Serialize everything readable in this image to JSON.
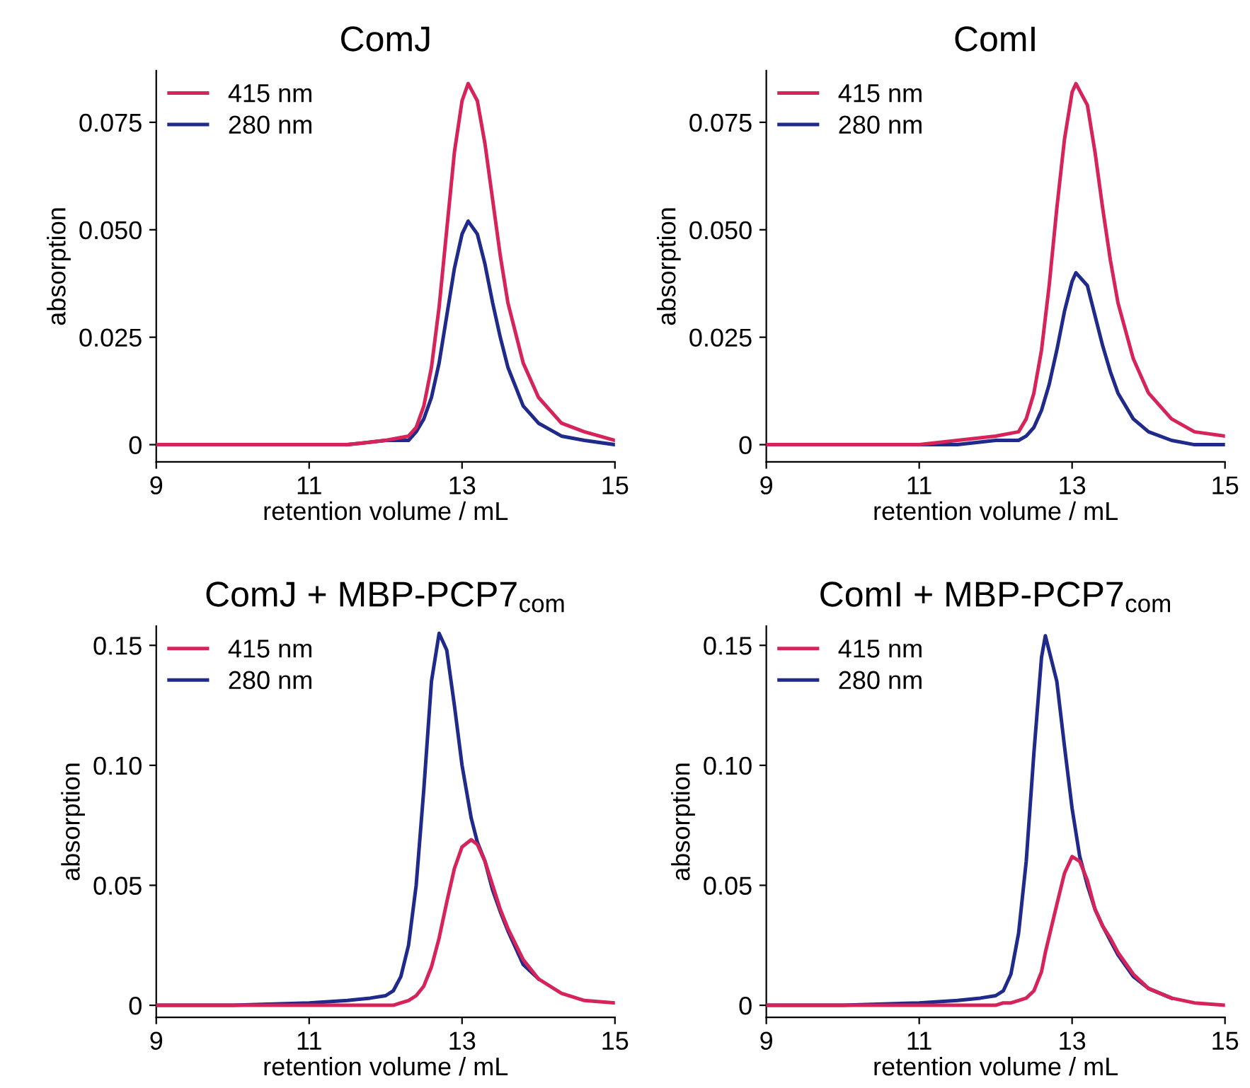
{
  "chart_data": [
    {
      "type": "line",
      "title": "ComJ",
      "xlabel": "retention volume / mL",
      "ylabel": "absorption",
      "legend": "top left",
      "grid": false,
      "x": [
        9,
        10,
        11,
        11.5,
        12,
        12.3,
        12.4,
        12.5,
        12.6,
        12.7,
        12.8,
        12.9,
        13.0,
        13.08,
        13.2,
        13.3,
        13.4,
        13.5,
        13.6,
        13.8,
        14.0,
        14.3,
        14.6,
        15
      ],
      "xlim": [
        9,
        15
      ],
      "xticks": [
        9,
        11,
        13,
        15
      ],
      "ylim": [
        -0.004,
        0.087
      ],
      "yticks": [
        0,
        {
          "value": 0.025,
          "label": "0.025"
        },
        {
          "value": 0.05,
          "label": "0.050"
        },
        {
          "value": 0.075,
          "label": "0.075"
        }
      ],
      "series": [
        {
          "name": "415 nm",
          "color": "#d6245a",
          "values": [
            0,
            0,
            0,
            0,
            0.001,
            0.002,
            0.004,
            0.009,
            0.018,
            0.032,
            0.05,
            0.068,
            0.08,
            0.084,
            0.08,
            0.07,
            0.057,
            0.044,
            0.033,
            0.019,
            0.011,
            0.005,
            0.003,
            0.001
          ]
        },
        {
          "name": "280 nm",
          "color": "#1f2a8a",
          "values": [
            null,
            null,
            null,
            0,
            0.001,
            0.001,
            0.003,
            0.006,
            0.011,
            0.019,
            0.03,
            0.041,
            0.049,
            0.052,
            0.049,
            0.042,
            0.033,
            0.025,
            0.018,
            0.009,
            0.005,
            0.002,
            0.001,
            0
          ]
        }
      ]
    },
    {
      "type": "line",
      "title": "ComI",
      "xlabel": "retention volume / mL",
      "ylabel": "absorption",
      "legend": "top left",
      "grid": false,
      "x": [
        9,
        10,
        11,
        11.5,
        12,
        12.3,
        12.4,
        12.5,
        12.6,
        12.7,
        12.8,
        12.9,
        13.0,
        13.05,
        13.2,
        13.3,
        13.4,
        13.5,
        13.6,
        13.8,
        14.0,
        14.3,
        14.6,
        15
      ],
      "xlim": [
        9,
        15
      ],
      "xticks": [
        9,
        11,
        13,
        15
      ],
      "ylim": [
        -0.004,
        0.087
      ],
      "yticks": [
        0,
        {
          "value": 0.025,
          "label": "0.025"
        },
        {
          "value": 0.05,
          "label": "0.050"
        },
        {
          "value": 0.075,
          "label": "0.075"
        }
      ],
      "series": [
        {
          "name": "415 nm",
          "color": "#d6245a",
          "values": [
            0,
            0,
            0,
            0.001,
            0.002,
            0.003,
            0.006,
            0.012,
            0.022,
            0.037,
            0.055,
            0.071,
            0.082,
            0.084,
            0.079,
            0.068,
            0.055,
            0.043,
            0.033,
            0.02,
            0.012,
            0.006,
            0.003,
            0.002
          ]
        },
        {
          "name": "280 nm",
          "color": "#1f2a8a",
          "values": [
            0,
            0,
            0,
            0,
            0.001,
            0.001,
            0.002,
            0.004,
            0.008,
            0.014,
            0.022,
            0.031,
            0.038,
            0.04,
            0.037,
            0.03,
            0.023,
            0.017,
            0.012,
            0.006,
            0.003,
            0.001,
            0,
            0
          ]
        }
      ]
    },
    {
      "type": "line",
      "title": "ComJ + MBP-PCP7$_{com}$",
      "xlabel": "retention volume / mL",
      "ylabel": "absorption",
      "legend": "top left",
      "grid": false,
      "x": [
        9,
        10,
        11,
        11.5,
        11.8,
        12.0,
        12.1,
        12.2,
        12.3,
        12.4,
        12.5,
        12.6,
        12.7,
        12.8,
        12.9,
        13.0,
        13.12,
        13.2,
        13.3,
        13.4,
        13.5,
        13.6,
        13.8,
        14.0,
        14.3,
        14.6,
        15
      ],
      "xlim": [
        9,
        15
      ],
      "xticks": [
        9,
        11,
        13,
        15
      ],
      "ylim": [
        -0.005,
        0.158
      ],
      "yticks": [
        0,
        {
          "value": 0.05,
          "label": "0.05"
        },
        {
          "value": 0.1,
          "label": "0.10"
        },
        {
          "value": 0.15,
          "label": "0.15"
        }
      ],
      "series": [
        {
          "name": "415 nm",
          "color": "#d6245a",
          "values": [
            0,
            0,
            0,
            0,
            0,
            0,
            0,
            0.001,
            0.002,
            0.004,
            0.008,
            0.016,
            0.028,
            0.043,
            0.057,
            0.066,
            0.069,
            0.067,
            0.06,
            0.05,
            0.04,
            0.032,
            0.019,
            0.011,
            0.005,
            0.002,
            0.001
          ]
        },
        {
          "name": "280 nm",
          "color": "#1f2a8a",
          "values": [
            0,
            0,
            0.001,
            0.002,
            0.003,
            0.004,
            0.006,
            0.012,
            0.025,
            0.05,
            0.09,
            0.135,
            0.155,
            0.148,
            0.125,
            0.1,
            0.078,
            0.068,
            0.06,
            0.048,
            0.039,
            0.031,
            0.017,
            0.011,
            null,
            null,
            null
          ]
        }
      ]
    },
    {
      "type": "line",
      "title": "ComI + MBP-PCP7$_{com}$",
      "xlabel": "retention volume / mL",
      "ylabel": "absorption",
      "legend": "top left",
      "grid": false,
      "x": [
        9,
        10,
        11,
        11.5,
        11.8,
        12.0,
        12.1,
        12.2,
        12.3,
        12.4,
        12.5,
        12.6,
        12.65,
        12.8,
        12.9,
        13.0,
        13.1,
        13.2,
        13.3,
        13.4,
        13.5,
        13.6,
        13.8,
        14.0,
        14.3,
        14.6,
        15
      ],
      "xlim": [
        9,
        15
      ],
      "xticks": [
        9,
        11,
        13,
        15
      ],
      "ylim": [
        -0.005,
        0.158
      ],
      "yticks": [
        0,
        {
          "value": 0.05,
          "label": "0.05"
        },
        {
          "value": 0.1,
          "label": "0.10"
        },
        {
          "value": 0.15,
          "label": "0.15"
        }
      ],
      "series": [
        {
          "name": "415 nm",
          "color": "#d6245a",
          "values": [
            0,
            0,
            0,
            0,
            0,
            0,
            0.001,
            0.001,
            0.002,
            0.003,
            0.006,
            0.014,
            0.022,
            0.042,
            0.055,
            0.062,
            0.06,
            0.052,
            0.04,
            0.033,
            0.028,
            0.022,
            0.013,
            0.007,
            0.003,
            0.001,
            0
          ]
        },
        {
          "name": "280 nm",
          "color": "#1f2a8a",
          "values": [
            0,
            0,
            0.001,
            0.002,
            0.003,
            0.004,
            0.006,
            0.013,
            0.03,
            0.06,
            0.105,
            0.145,
            0.154,
            0.135,
            0.108,
            0.082,
            0.062,
            0.05,
            0.04,
            0.033,
            0.027,
            0.021,
            0.012,
            0.007,
            0.003,
            null,
            null
          ]
        }
      ]
    }
  ]
}
